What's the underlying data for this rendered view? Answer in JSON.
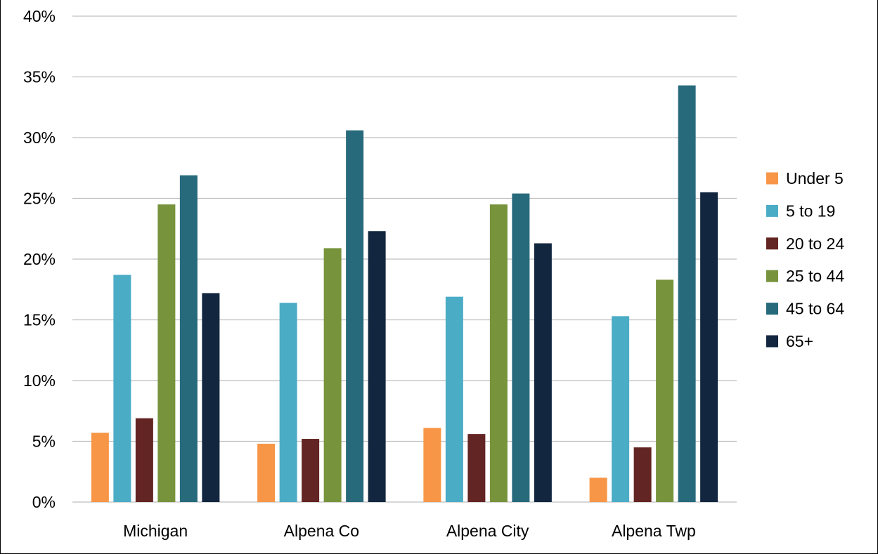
{
  "chart_data": {
    "type": "bar",
    "title": "",
    "xlabel": "",
    "ylabel": "",
    "ylim": [
      0,
      40
    ],
    "y_ticks": [
      "0%",
      "5%",
      "10%",
      "15%",
      "20%",
      "25%",
      "30%",
      "35%",
      "40%"
    ],
    "y_tick_values": [
      0,
      5,
      10,
      15,
      20,
      25,
      30,
      35,
      40
    ],
    "grid": true,
    "legend_position": "right",
    "categories": [
      "Michigan",
      "Alpena Co",
      "Alpena City",
      "Alpena Twp"
    ],
    "series": [
      {
        "name": "Under 5",
        "color": "#F79646",
        "values": [
          5.7,
          4.8,
          6.1,
          2.0
        ]
      },
      {
        "name": "5 to 19",
        "color": "#4BACC6",
        "values": [
          18.7,
          16.4,
          16.9,
          15.3
        ]
      },
      {
        "name": "20 to 24",
        "color": "#632523",
        "values": [
          6.9,
          5.2,
          5.6,
          4.5
        ]
      },
      {
        "name": "25 to 44",
        "color": "#77933C",
        "values": [
          24.5,
          20.9,
          24.5,
          18.3
        ]
      },
      {
        "name": "45 to 64",
        "color": "#276A7C",
        "values": [
          26.9,
          30.6,
          25.4,
          34.3
        ]
      },
      {
        "name": "65+",
        "color": "#12263F",
        "values": [
          17.2,
          22.3,
          21.3,
          25.5
        ]
      }
    ]
  }
}
